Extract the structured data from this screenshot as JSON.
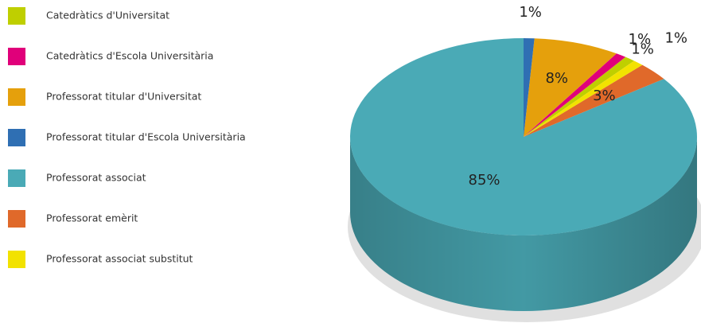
{
  "chart_data": {
    "type": "pie",
    "categories": [
      "Catedràtics d'Universitat",
      "Catedràtics d'Escola Universitària",
      "Professorat titular d'Universitat",
      "Professorat titular d'Escola Universitària",
      "Professorat associat",
      "Professorat emèrit",
      "Professorat associat substitut"
    ],
    "values": [
      1,
      1,
      8,
      1,
      85,
      3,
      1
    ],
    "value_labels": [
      "1%",
      "1%",
      "8%",
      "1%",
      "85%",
      "3%",
      "1%"
    ],
    "colors": [
      "#bfcf00",
      "#e0007a",
      "#e5a00c",
      "#2f6fb3",
      "#4aaab6",
      "#e0692a",
      "#f2e200"
    ],
    "legend": "left"
  }
}
